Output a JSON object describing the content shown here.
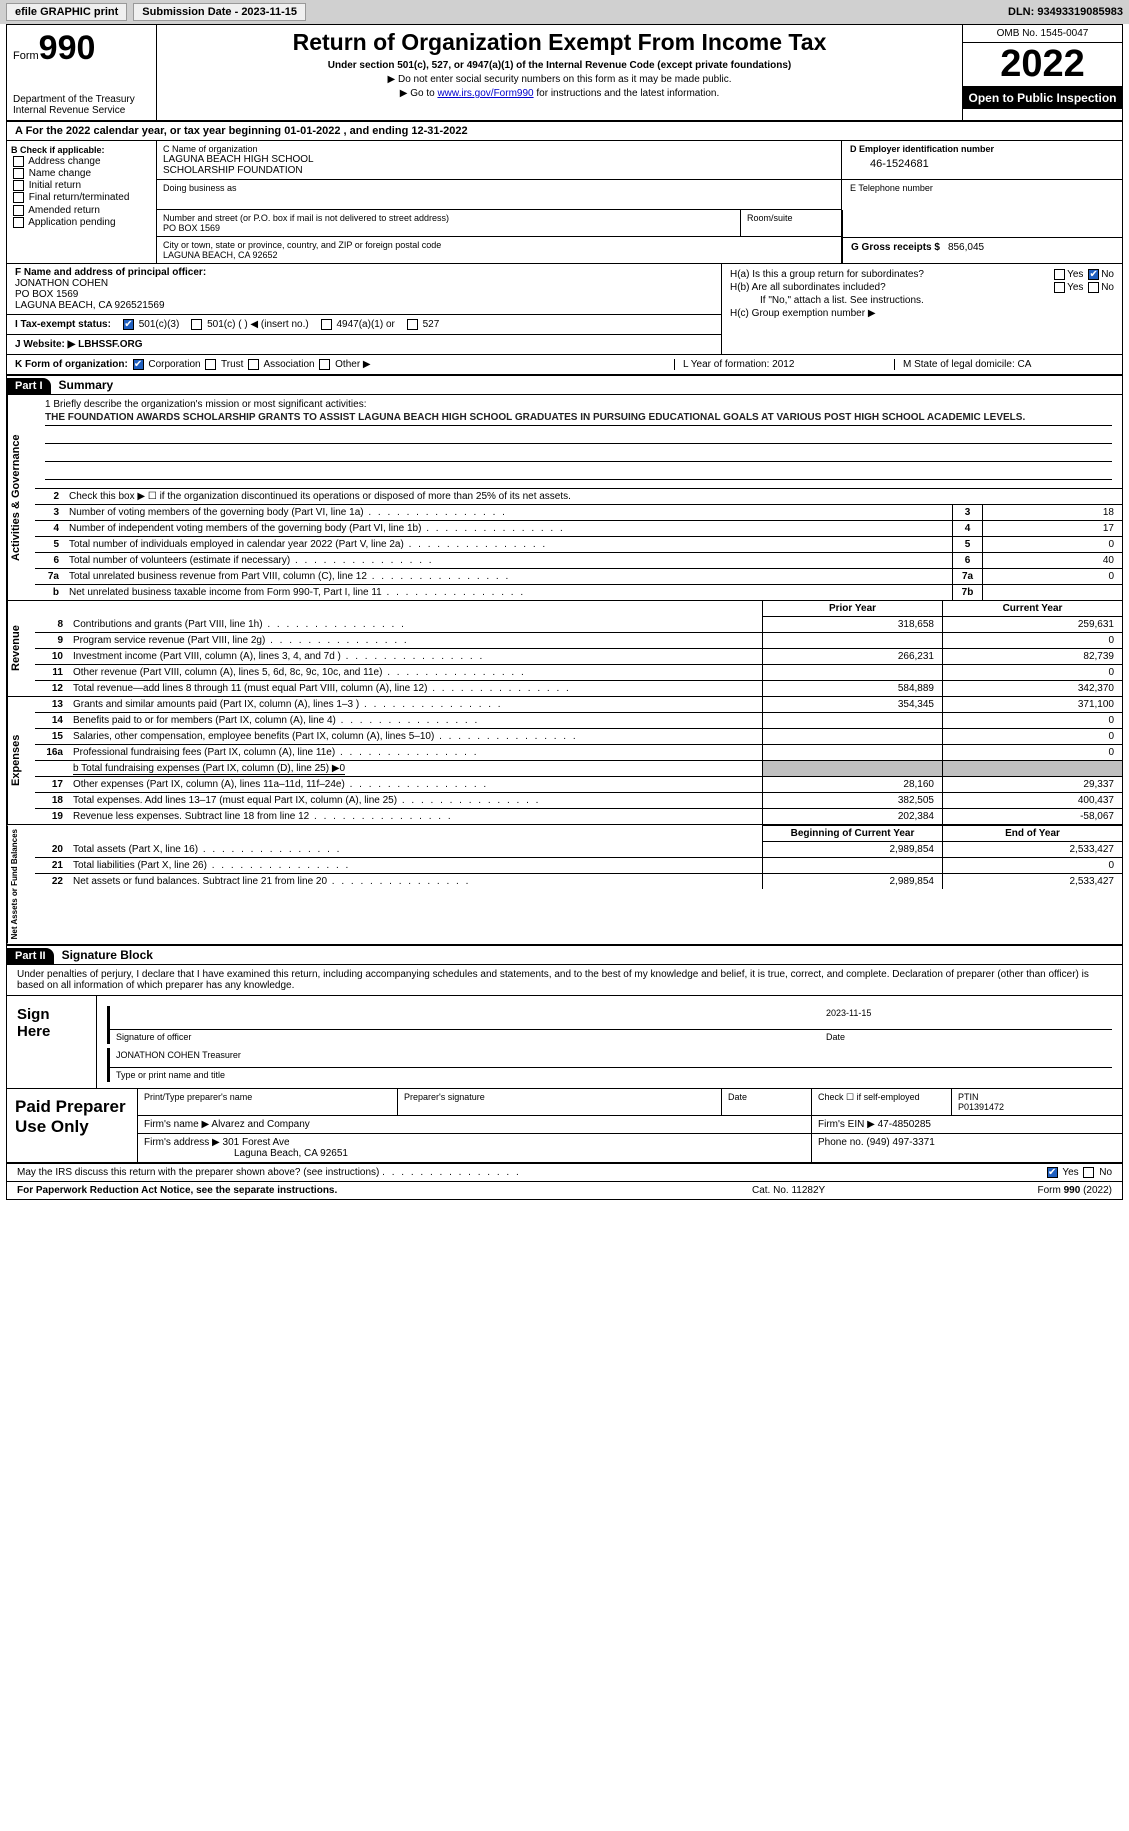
{
  "topbar": {
    "efile": "efile GRAPHIC print",
    "sub_label": "Submission Date - 2023-11-15",
    "dln": "DLN: 93493319085983"
  },
  "header": {
    "form_prefix": "Form",
    "form_no": "990",
    "dept": "Department of the Treasury\nInternal Revenue Service",
    "title": "Return of Organization Exempt From Income Tax",
    "subtitle": "Under section 501(c), 527, or 4947(a)(1) of the Internal Revenue Code (except private foundations)",
    "instr1": "▶ Do not enter social security numbers on this form as it may be made public.",
    "instr2_pre": "▶ Go to ",
    "instr2_link": "www.irs.gov/Form990",
    "instr2_post": " for instructions and the latest information.",
    "omb": "OMB No. 1545-0047",
    "year": "2022",
    "open": "Open to Public Inspection"
  },
  "rowA": "A For the 2022 calendar year, or tax year beginning 01-01-2022     , and ending 12-31-2022",
  "secB": {
    "label": "B Check if applicable:",
    "opts": [
      "Address change",
      "Name change",
      "Initial return",
      "Final return/terminated",
      "Amended return",
      "Application pending"
    ]
  },
  "secC": {
    "name_label": "C Name of organization",
    "name": "LAGUNA BEACH HIGH SCHOOL\nSCHOLARSHIP FOUNDATION",
    "dba": "Doing business as",
    "street_label": "Number and street (or P.O. box if mail is not delivered to street address)",
    "street": "PO BOX 1569",
    "room_label": "Room/suite",
    "city_label": "City or town, state or province, country, and ZIP or foreign postal code",
    "city": "LAGUNA BEACH, CA  92652"
  },
  "secD": {
    "label": "D Employer identification number",
    "val": "46-1524681"
  },
  "secE": {
    "label": "E Telephone number"
  },
  "secG": {
    "label": "G Gross receipts $",
    "val": "856,045"
  },
  "secF": {
    "label": "F  Name and address of principal officer:",
    "name": "JONATHON COHEN",
    "addr1": "PO BOX 1569",
    "addr2": "LAGUNA BEACH, CA  926521569"
  },
  "secH": {
    "ha": "H(a)  Is this a group return for subordinates?",
    "hb": "H(b)  Are all subordinates included?",
    "hb_note": "If \"No,\" attach a list. See instructions.",
    "hc": "H(c)  Group exemption number ▶"
  },
  "secI": {
    "label": "I    Tax-exempt status:",
    "o1": "501(c)(3)",
    "o2": "501(c) (  ) ◀ (insert no.)",
    "o3": "4947(a)(1) or",
    "o4": "527"
  },
  "secJ": {
    "label": "J   Website: ▶",
    "val": " LBHSSF.ORG"
  },
  "secK": {
    "label": "K Form of organization:",
    "o1": "Corporation",
    "o2": "Trust",
    "o3": "Association",
    "o4": "Other ▶",
    "l": "L  Year of formation: 2012",
    "m": "M State of legal domicile: CA"
  },
  "parts": {
    "p1": "Part I",
    "p1_title": "Summary",
    "p2": "Part II",
    "p2_title": "Signature Block"
  },
  "tabs": {
    "act": "Activities & Governance",
    "rev": "Revenue",
    "exp": "Expenses",
    "net": "Net Assets or Fund Balances"
  },
  "mission": {
    "label": "1   Briefly describe the organization's mission or most significant activities:",
    "text": "THE FOUNDATION AWARDS SCHOLARSHIP GRANTS TO ASSIST LAGUNA BEACH HIGH SCHOOL GRADUATES IN PURSUING EDUCATIONAL GOALS AT VARIOUS POST HIGH SCHOOL ACADEMIC LEVELS."
  },
  "line2": "Check this box ▶ ☐ if the organization discontinued its operations or disposed of more than 25% of its net assets.",
  "gov_lines": [
    {
      "n": "3",
      "t": "Number of voting members of the governing body (Part VI, line 1a)",
      "box": "3",
      "v": "18"
    },
    {
      "n": "4",
      "t": "Number of independent voting members of the governing body (Part VI, line 1b)",
      "box": "4",
      "v": "17"
    },
    {
      "n": "5",
      "t": "Total number of individuals employed in calendar year 2022 (Part V, line 2a)",
      "box": "5",
      "v": "0"
    },
    {
      "n": "6",
      "t": "Total number of volunteers (estimate if necessary)",
      "box": "6",
      "v": "40"
    },
    {
      "n": "7a",
      "t": "Total unrelated business revenue from Part VIII, column (C), line 12",
      "box": "7a",
      "v": "0"
    },
    {
      "n": "b",
      "t": "Net unrelated business taxable income from Form 990-T, Part I, line 11",
      "box": "7b",
      "v": ""
    }
  ],
  "cols": {
    "prior": "Prior Year",
    "current": "Current Year",
    "boy": "Beginning of Current Year",
    "eoy": "End of Year"
  },
  "rev_lines": [
    {
      "n": "8",
      "t": "Contributions and grants (Part VIII, line 1h)",
      "p": "318,658",
      "c": "259,631"
    },
    {
      "n": "9",
      "t": "Program service revenue (Part VIII, line 2g)",
      "p": "",
      "c": "0"
    },
    {
      "n": "10",
      "t": "Investment income (Part VIII, column (A), lines 3, 4, and 7d )",
      "p": "266,231",
      "c": "82,739"
    },
    {
      "n": "11",
      "t": "Other revenue (Part VIII, column (A), lines 5, 6d, 8c, 9c, 10c, and 11e)",
      "p": "",
      "c": "0"
    },
    {
      "n": "12",
      "t": "Total revenue—add lines 8 through 11 (must equal Part VIII, column (A), line 12)",
      "p": "584,889",
      "c": "342,370"
    }
  ],
  "exp_lines": [
    {
      "n": "13",
      "t": "Grants and similar amounts paid (Part IX, column (A), lines 1–3 )",
      "p": "354,345",
      "c": "371,100"
    },
    {
      "n": "14",
      "t": "Benefits paid to or for members (Part IX, column (A), line 4)",
      "p": "",
      "c": "0"
    },
    {
      "n": "15",
      "t": "Salaries, other compensation, employee benefits (Part IX, column (A), lines 5–10)",
      "p": "",
      "c": "0"
    },
    {
      "n": "16a",
      "t": "Professional fundraising fees (Part IX, column (A), line 11e)",
      "p": "",
      "c": "0"
    }
  ],
  "line16b": "b   Total fundraising expenses (Part IX, column (D), line 25) ▶0",
  "exp_lines2": [
    {
      "n": "17",
      "t": "Other expenses (Part IX, column (A), lines 11a–11d, 11f–24e)",
      "p": "28,160",
      "c": "29,337"
    },
    {
      "n": "18",
      "t": "Total expenses. Add lines 13–17 (must equal Part IX, column (A), line 25)",
      "p": "382,505",
      "c": "400,437"
    },
    {
      "n": "19",
      "t": "Revenue less expenses. Subtract line 18 from line 12",
      "p": "202,384",
      "c": "-58,067"
    }
  ],
  "net_lines": [
    {
      "n": "20",
      "t": "Total assets (Part X, line 16)",
      "p": "2,989,854",
      "c": "2,533,427"
    },
    {
      "n": "21",
      "t": "Total liabilities (Part X, line 26)",
      "p": "",
      "c": "0"
    },
    {
      "n": "22",
      "t": "Net assets or fund balances. Subtract line 21 from line 20",
      "p": "2,989,854",
      "c": "2,533,427"
    }
  ],
  "sig": {
    "intro": "Under penalties of perjury, I declare that I have examined this return, including accompanying schedules and statements, and to the best of my knowledge and belief, it is true, correct, and complete. Declaration of preparer (other than officer) is based on all information of which preparer has any knowledge.",
    "here": "Sign Here",
    "sig_officer": "Signature of officer",
    "date_l": "Date",
    "date_v": "2023-11-15",
    "name": "JONATHON COHEN  Treasurer",
    "name_l": "Type or print name and title"
  },
  "prep": {
    "title": "Paid Preparer Use Only",
    "h1": "Print/Type preparer's name",
    "h2": "Preparer's signature",
    "h3": "Date",
    "h4": "Check ☐ if self-employed",
    "h5_l": "PTIN",
    "h5_v": "P01391472",
    "firm_l": "Firm's name     ▶",
    "firm_v": "Alvarez and Company",
    "ein_l": "Firm's EIN ▶",
    "ein_v": "47-4850285",
    "addr_l": "Firm's address ▶",
    "addr_v": "301 Forest Ave",
    "addr_v2": "Laguna Beach, CA  92651",
    "phone_l": "Phone no.",
    "phone_v": "(949) 497-3371"
  },
  "may": "May the IRS discuss this return with the preparer shown above? (see instructions)",
  "footer": {
    "l": "For Paperwork Reduction Act Notice, see the separate instructions.",
    "m": "Cat. No. 11282Y",
    "r": "Form 990 (2022)"
  }
}
